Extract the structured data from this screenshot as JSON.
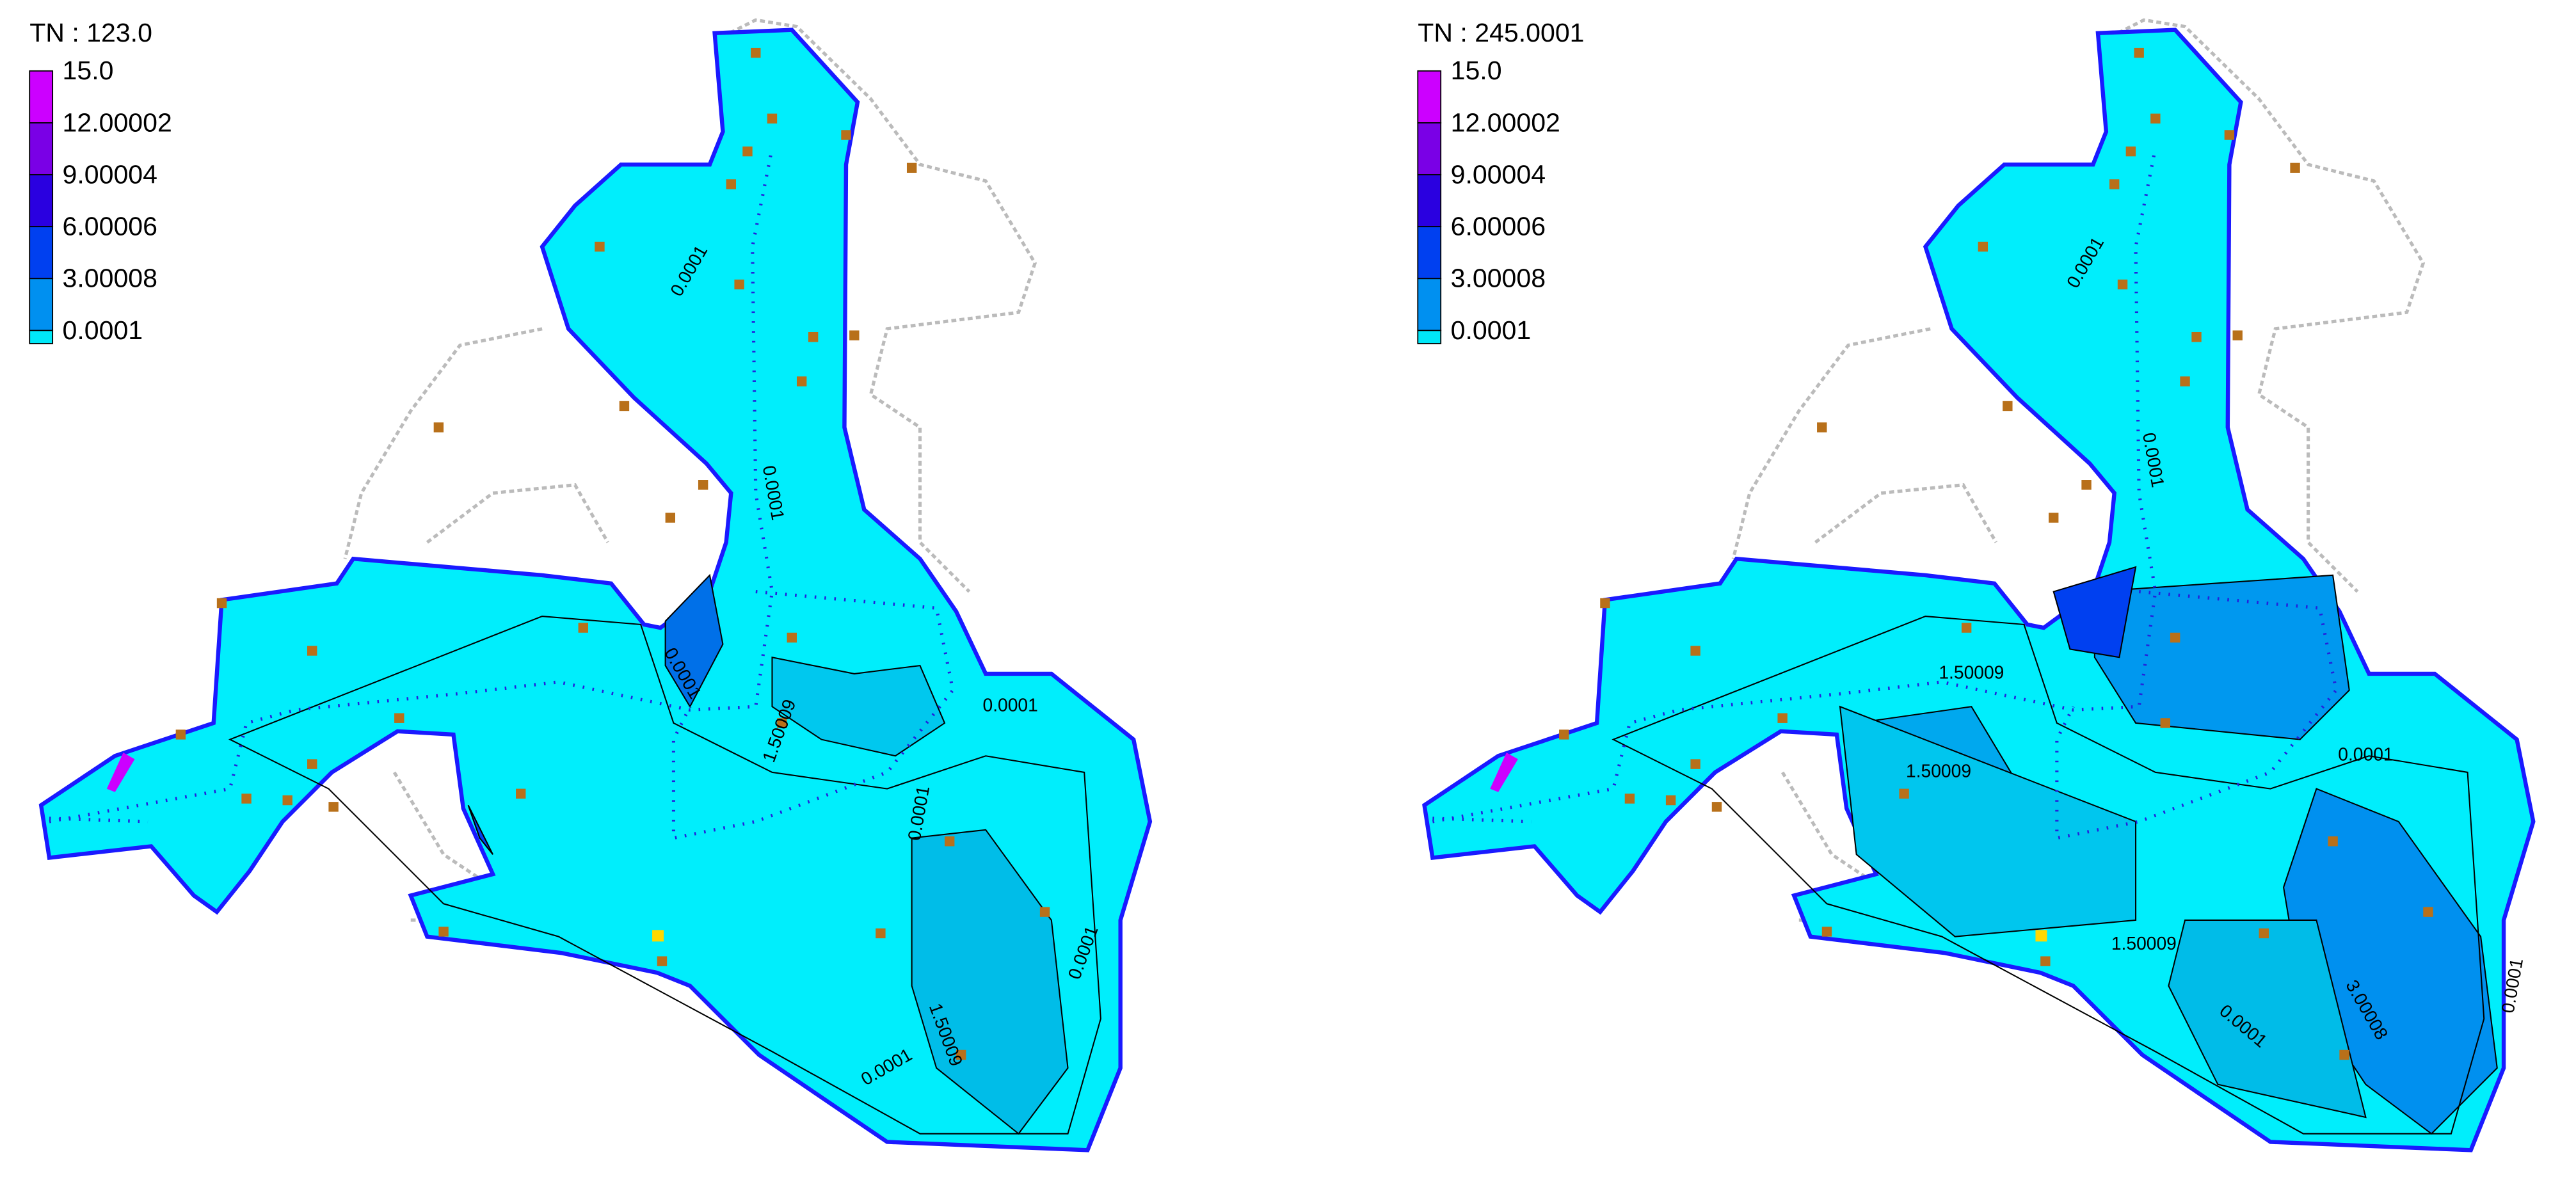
{
  "panels": [
    {
      "title": "TN : 123.0",
      "legend": [
        {
          "label": "15.0",
          "color": "#cc00ff"
        },
        {
          "label": "12.00002",
          "color": "#7a00e6"
        },
        {
          "label": "9.00004",
          "color": "#2a00e0"
        },
        {
          "label": "6.00006",
          "color": "#0040f0"
        },
        {
          "label": "3.00008",
          "color": "#0090f0"
        },
        {
          "label": "0.0001",
          "color": "#00e8f8"
        }
      ],
      "contour_labels": [
        "0.0001",
        "0.0001",
        "0.0001",
        "0.0001",
        "1.50009",
        "0.0001",
        "0.0001",
        "1.50009",
        "0.0001"
      ]
    },
    {
      "title": "TN : 245.0001",
      "legend": [
        {
          "label": "15.0",
          "color": "#cc00ff"
        },
        {
          "label": "12.00002",
          "color": "#7a00e6"
        },
        {
          "label": "9.00004",
          "color": "#2a00e0"
        },
        {
          "label": "6.00006",
          "color": "#0040f0"
        },
        {
          "label": "3.00008",
          "color": "#0090f0"
        },
        {
          "label": "0.0001",
          "color": "#00e8f8"
        }
      ],
      "contour_labels": [
        "0.0001",
        "0.0001",
        "1.50009",
        "0.0001",
        "1.50009",
        "1.50009",
        "3.00008",
        "0.0001",
        "0.0001"
      ]
    }
  ]
}
